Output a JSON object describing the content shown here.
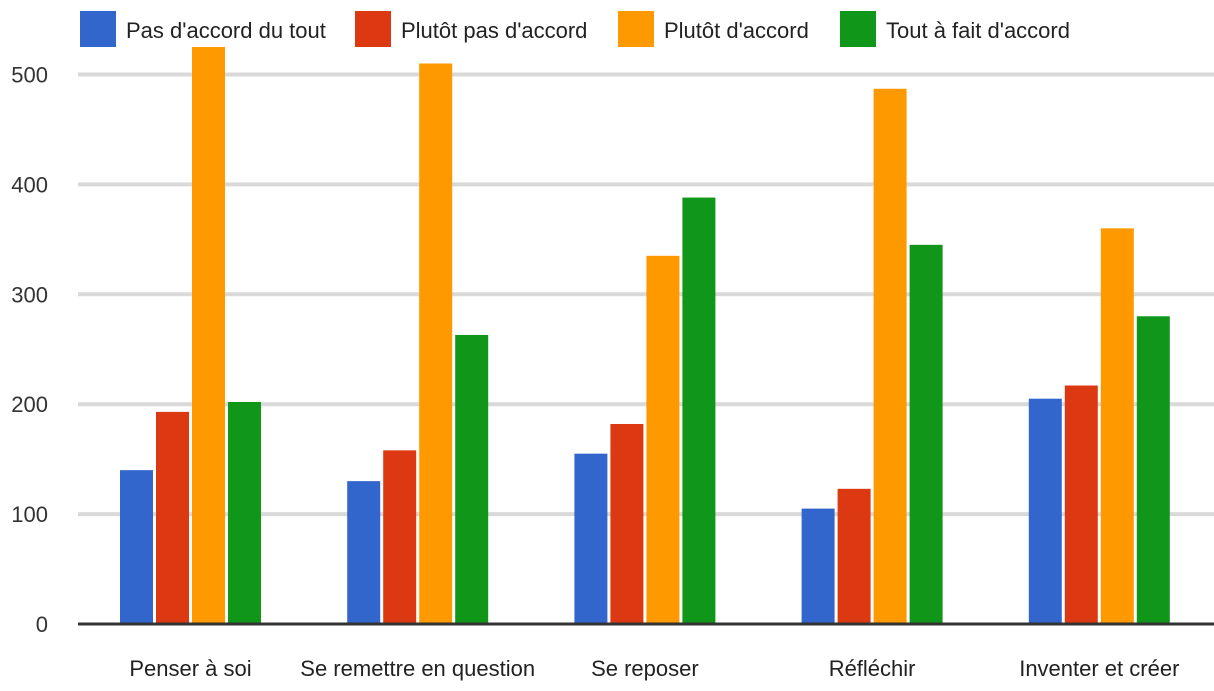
{
  "chart_data": {
    "type": "bar",
    "title": "",
    "xlabel": "",
    "ylabel": "",
    "categories": [
      "Penser à soi",
      "Se remettre en question",
      "Se reposer",
      "Réfléchir",
      "Inventer et créer"
    ],
    "series": [
      {
        "name": "Pas d'accord du tout",
        "color": "#3366cc",
        "values": [
          140,
          130,
          155,
          105,
          205
        ]
      },
      {
        "name": "Plutôt pas d'accord",
        "color": "#dc3912",
        "values": [
          193,
          158,
          182,
          123,
          217
        ]
      },
      {
        "name": "Plutôt d'accord",
        "color": "#ff9900",
        "values": [
          525,
          510,
          335,
          487,
          360
        ]
      },
      {
        "name": "Tout à fait d'accord",
        "color": "#109618",
        "values": [
          202,
          263,
          388,
          345,
          280
        ]
      }
    ],
    "ylim": [
      0,
      525
    ],
    "yticks": [
      0,
      100,
      200,
      300,
      400,
      500
    ],
    "grid": true,
    "legend_position": "top"
  }
}
